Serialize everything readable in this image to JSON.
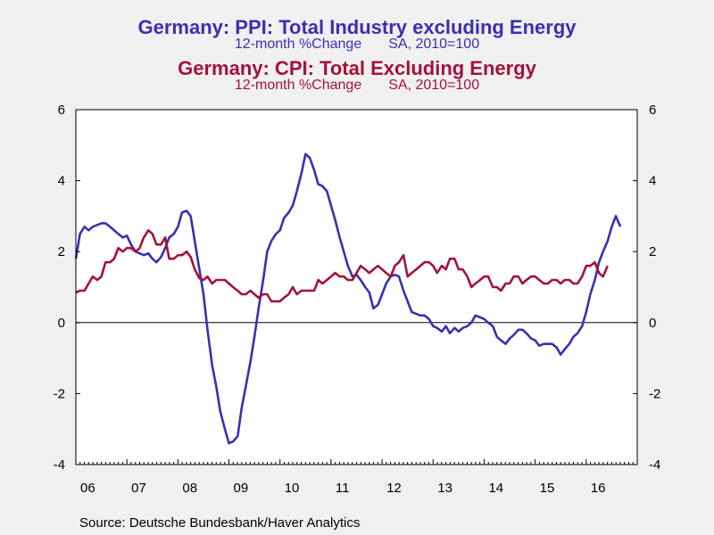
{
  "chart_data": {
    "type": "line",
    "titles": [
      {
        "title": "Germany: PPI: Total Industry excluding Energy",
        "subtitle_left": "12-month %Change",
        "subtitle_right": "SA, 2010=100",
        "color": "#3b2fb0"
      },
      {
        "title": "Germany: CPI: Total Excluding Energy",
        "subtitle_left": "12-month %Change",
        "subtitle_right": "SA, 2010=100",
        "color": "#a3123a"
      }
    ],
    "x_tick_labels": [
      "06",
      "07",
      "08",
      "09",
      "10",
      "11",
      "12",
      "13",
      "14",
      "15",
      "16"
    ],
    "x_range": [
      2006.0,
      2017.0
    ],
    "ylim": [
      -4,
      6
    ],
    "y_ticks": [
      -4,
      -2,
      0,
      2,
      4,
      6
    ],
    "zero_line": true,
    "grid": false,
    "legend": "none",
    "series": [
      {
        "color": "#3b2fb0",
        "points": [
          [
            2006.0,
            1.8
          ],
          [
            2006.08,
            2.5
          ],
          [
            2006.17,
            2.7
          ],
          [
            2006.25,
            2.6
          ],
          [
            2006.33,
            2.7
          ],
          [
            2006.42,
            2.75
          ],
          [
            2006.5,
            2.8
          ],
          [
            2006.58,
            2.8
          ],
          [
            2006.67,
            2.7
          ],
          [
            2006.75,
            2.6
          ],
          [
            2006.83,
            2.5
          ],
          [
            2006.92,
            2.4
          ],
          [
            2007.0,
            2.45
          ],
          [
            2007.08,
            2.2
          ],
          [
            2007.17,
            2.0
          ],
          [
            2007.25,
            1.95
          ],
          [
            2007.33,
            1.9
          ],
          [
            2007.42,
            1.95
          ],
          [
            2007.5,
            1.8
          ],
          [
            2007.58,
            1.7
          ],
          [
            2007.67,
            1.85
          ],
          [
            2007.75,
            2.1
          ],
          [
            2007.83,
            2.4
          ],
          [
            2007.92,
            2.5
          ],
          [
            2008.0,
            2.7
          ],
          [
            2008.08,
            3.1
          ],
          [
            2008.17,
            3.15
          ],
          [
            2008.25,
            3.0
          ],
          [
            2008.33,
            2.3
          ],
          [
            2008.42,
            1.5
          ],
          [
            2008.5,
            0.8
          ],
          [
            2008.58,
            -0.2
          ],
          [
            2008.67,
            -1.2
          ],
          [
            2008.75,
            -1.8
          ],
          [
            2008.83,
            -2.5
          ],
          [
            2008.92,
            -3.0
          ],
          [
            2009.0,
            -3.4
          ],
          [
            2009.08,
            -3.35
          ],
          [
            2009.17,
            -3.2
          ],
          [
            2009.25,
            -2.4
          ],
          [
            2009.33,
            -1.8
          ],
          [
            2009.42,
            -1.1
          ],
          [
            2009.5,
            -0.4
          ],
          [
            2009.58,
            0.4
          ],
          [
            2009.67,
            1.2
          ],
          [
            2009.75,
            2.0
          ],
          [
            2009.83,
            2.3
          ],
          [
            2009.92,
            2.5
          ],
          [
            2010.0,
            2.6
          ],
          [
            2010.08,
            2.95
          ],
          [
            2010.17,
            3.1
          ],
          [
            2010.25,
            3.3
          ],
          [
            2010.33,
            3.7
          ],
          [
            2010.42,
            4.2
          ],
          [
            2010.5,
            4.75
          ],
          [
            2010.58,
            4.65
          ],
          [
            2010.67,
            4.3
          ],
          [
            2010.75,
            3.9
          ],
          [
            2010.83,
            3.85
          ],
          [
            2010.92,
            3.7
          ],
          [
            2011.0,
            3.3
          ],
          [
            2011.08,
            2.9
          ],
          [
            2011.17,
            2.4
          ],
          [
            2011.25,
            2.0
          ],
          [
            2011.33,
            1.6
          ],
          [
            2011.42,
            1.3
          ],
          [
            2011.5,
            1.35
          ],
          [
            2011.58,
            1.2
          ],
          [
            2011.67,
            1.0
          ],
          [
            2011.75,
            0.85
          ],
          [
            2011.83,
            0.4
          ],
          [
            2011.92,
            0.5
          ],
          [
            2012.0,
            0.8
          ],
          [
            2012.08,
            1.1
          ],
          [
            2012.17,
            1.3
          ],
          [
            2012.25,
            1.35
          ],
          [
            2012.33,
            1.3
          ],
          [
            2012.42,
            0.9
          ],
          [
            2012.5,
            0.6
          ],
          [
            2012.58,
            0.3
          ],
          [
            2012.67,
            0.25
          ],
          [
            2012.75,
            0.2
          ],
          [
            2012.83,
            0.2
          ],
          [
            2012.92,
            0.1
          ],
          [
            2013.0,
            -0.1
          ],
          [
            2013.08,
            -0.15
          ],
          [
            2013.17,
            -0.25
          ],
          [
            2013.25,
            -0.1
          ],
          [
            2013.33,
            -0.3
          ],
          [
            2013.42,
            -0.15
          ],
          [
            2013.5,
            -0.25
          ],
          [
            2013.58,
            -0.15
          ],
          [
            2013.67,
            -0.1
          ],
          [
            2013.75,
            0.0
          ],
          [
            2013.83,
            0.2
          ],
          [
            2013.92,
            0.15
          ],
          [
            2014.0,
            0.1
          ],
          [
            2014.08,
            0.0
          ],
          [
            2014.17,
            -0.1
          ],
          [
            2014.25,
            -0.4
          ],
          [
            2014.33,
            -0.5
          ],
          [
            2014.42,
            -0.6
          ],
          [
            2014.5,
            -0.45
          ],
          [
            2014.58,
            -0.35
          ],
          [
            2014.67,
            -0.2
          ],
          [
            2014.75,
            -0.2
          ],
          [
            2014.83,
            -0.3
          ],
          [
            2014.92,
            -0.45
          ],
          [
            2015.0,
            -0.5
          ],
          [
            2015.08,
            -0.65
          ],
          [
            2015.17,
            -0.6
          ],
          [
            2015.25,
            -0.6
          ],
          [
            2015.33,
            -0.6
          ],
          [
            2015.42,
            -0.7
          ],
          [
            2015.5,
            -0.9
          ],
          [
            2015.58,
            -0.75
          ],
          [
            2015.67,
            -0.6
          ],
          [
            2015.75,
            -0.4
          ],
          [
            2015.83,
            -0.3
          ],
          [
            2015.92,
            -0.1
          ],
          [
            2016.0,
            0.3
          ],
          [
            2016.08,
            0.8
          ],
          [
            2016.17,
            1.2
          ],
          [
            2016.25,
            1.7
          ],
          [
            2016.33,
            2.0
          ],
          [
            2016.42,
            2.3
          ],
          [
            2016.5,
            2.7
          ],
          [
            2016.58,
            3.0
          ],
          [
            2016.67,
            2.7
          ]
        ]
      },
      {
        "color": "#a3123a",
        "points": [
          [
            2006.0,
            0.85
          ],
          [
            2006.08,
            0.9
          ],
          [
            2006.17,
            0.9
          ],
          [
            2006.25,
            1.1
          ],
          [
            2006.33,
            1.3
          ],
          [
            2006.42,
            1.2
          ],
          [
            2006.5,
            1.3
          ],
          [
            2006.58,
            1.7
          ],
          [
            2006.67,
            1.7
          ],
          [
            2006.75,
            1.8
          ],
          [
            2006.83,
            2.1
          ],
          [
            2006.92,
            2.0
          ],
          [
            2007.0,
            2.1
          ],
          [
            2007.08,
            2.1
          ],
          [
            2007.17,
            2.0
          ],
          [
            2007.25,
            2.1
          ],
          [
            2007.33,
            2.4
          ],
          [
            2007.42,
            2.6
          ],
          [
            2007.5,
            2.5
          ],
          [
            2007.58,
            2.2
          ],
          [
            2007.67,
            2.2
          ],
          [
            2007.75,
            2.4
          ],
          [
            2007.83,
            1.8
          ],
          [
            2007.92,
            1.8
          ],
          [
            2008.0,
            1.9
          ],
          [
            2008.08,
            1.9
          ],
          [
            2008.17,
            2.0
          ],
          [
            2008.25,
            1.85
          ],
          [
            2008.33,
            1.5
          ],
          [
            2008.42,
            1.25
          ],
          [
            2008.5,
            1.2
          ],
          [
            2008.58,
            1.3
          ],
          [
            2008.67,
            1.1
          ],
          [
            2008.75,
            1.2
          ],
          [
            2008.83,
            1.2
          ],
          [
            2008.92,
            1.2
          ],
          [
            2009.0,
            1.1
          ],
          [
            2009.08,
            1.0
          ],
          [
            2009.17,
            0.9
          ],
          [
            2009.25,
            0.8
          ],
          [
            2009.33,
            0.8
          ],
          [
            2009.42,
            0.9
          ],
          [
            2009.5,
            0.8
          ],
          [
            2009.58,
            0.7
          ],
          [
            2009.67,
            0.8
          ],
          [
            2009.75,
            0.8
          ],
          [
            2009.83,
            0.6
          ],
          [
            2009.92,
            0.6
          ],
          [
            2010.0,
            0.6
          ],
          [
            2010.08,
            0.7
          ],
          [
            2010.17,
            0.8
          ],
          [
            2010.25,
            1.0
          ],
          [
            2010.33,
            0.8
          ],
          [
            2010.42,
            0.9
          ],
          [
            2010.5,
            0.9
          ],
          [
            2010.58,
            0.9
          ],
          [
            2010.67,
            0.9
          ],
          [
            2010.75,
            1.2
          ],
          [
            2010.83,
            1.1
          ],
          [
            2010.92,
            1.2
          ],
          [
            2011.0,
            1.3
          ],
          [
            2011.08,
            1.4
          ],
          [
            2011.17,
            1.3
          ],
          [
            2011.25,
            1.3
          ],
          [
            2011.33,
            1.2
          ],
          [
            2011.42,
            1.2
          ],
          [
            2011.5,
            1.4
          ],
          [
            2011.58,
            1.6
          ],
          [
            2011.67,
            1.5
          ],
          [
            2011.75,
            1.4
          ],
          [
            2011.83,
            1.5
          ],
          [
            2011.92,
            1.6
          ],
          [
            2012.0,
            1.5
          ],
          [
            2012.08,
            1.4
          ],
          [
            2012.17,
            1.3
          ],
          [
            2012.25,
            1.6
          ],
          [
            2012.33,
            1.7
          ],
          [
            2012.42,
            1.9
          ],
          [
            2012.5,
            1.3
          ],
          [
            2012.58,
            1.4
          ],
          [
            2012.67,
            1.5
          ],
          [
            2012.75,
            1.6
          ],
          [
            2012.83,
            1.7
          ],
          [
            2012.92,
            1.7
          ],
          [
            2013.0,
            1.6
          ],
          [
            2013.08,
            1.4
          ],
          [
            2013.17,
            1.6
          ],
          [
            2013.25,
            1.5
          ],
          [
            2013.33,
            1.8
          ],
          [
            2013.42,
            1.8
          ],
          [
            2013.5,
            1.5
          ],
          [
            2013.58,
            1.5
          ],
          [
            2013.67,
            1.3
          ],
          [
            2013.75,
            1.0
          ],
          [
            2013.83,
            1.1
          ],
          [
            2013.92,
            1.2
          ],
          [
            2014.0,
            1.3
          ],
          [
            2014.08,
            1.3
          ],
          [
            2014.17,
            1.0
          ],
          [
            2014.25,
            1.0
          ],
          [
            2014.33,
            0.9
          ],
          [
            2014.42,
            1.1
          ],
          [
            2014.5,
            1.1
          ],
          [
            2014.58,
            1.3
          ],
          [
            2014.67,
            1.3
          ],
          [
            2014.75,
            1.1
          ],
          [
            2014.83,
            1.2
          ],
          [
            2014.92,
            1.3
          ],
          [
            2015.0,
            1.3
          ],
          [
            2015.08,
            1.2
          ],
          [
            2015.17,
            1.1
          ],
          [
            2015.25,
            1.1
          ],
          [
            2015.33,
            1.2
          ],
          [
            2015.42,
            1.2
          ],
          [
            2015.5,
            1.1
          ],
          [
            2015.58,
            1.2
          ],
          [
            2015.67,
            1.2
          ],
          [
            2015.75,
            1.1
          ],
          [
            2015.83,
            1.1
          ],
          [
            2015.92,
            1.3
          ],
          [
            2016.0,
            1.6
          ],
          [
            2016.08,
            1.6
          ],
          [
            2016.17,
            1.7
          ],
          [
            2016.25,
            1.4
          ],
          [
            2016.33,
            1.3
          ],
          [
            2016.42,
            1.6
          ]
        ]
      }
    ]
  },
  "source": "Source:  Deutsche Bundesbank/Haver Analytics"
}
